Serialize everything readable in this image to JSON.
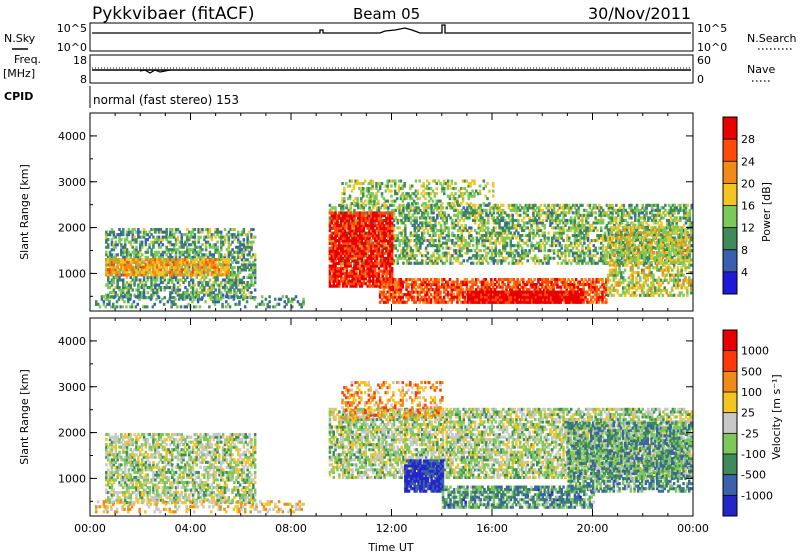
{
  "header": {
    "station": "Pykkvibaer (fitACF)",
    "beam": "Beam 05",
    "date": "30/Nov/2011"
  },
  "status_panels": {
    "nsky_label": "N.Sky",
    "nsky_ticks": [
      "10^5",
      "10^0"
    ],
    "nsearch_label": "N.Search",
    "nsearch_ticks": [
      "10^5",
      "10^0"
    ],
    "freq_label": "Freq.",
    "freq_unit": "[MHz]",
    "freq_ticks": [
      "18",
      "8"
    ],
    "nave_label": "Nave",
    "nave_ticks": [
      "60",
      "0"
    ],
    "cpid_label": "CPID",
    "cpid_text": "normal (fast stereo) 153"
  },
  "chart_data": [
    {
      "type": "heatmap",
      "quantity": "Power",
      "ylabel": "Slant Range [km]",
      "ylim": [
        180,
        4500
      ],
      "yticks": [
        1000,
        2000,
        3000,
        4000
      ],
      "xlim": [
        0,
        24
      ],
      "colorbar_label": "Power [dB]",
      "colorbar_ticks": [
        "4",
        "8",
        "12",
        "16",
        "20",
        "24",
        "28"
      ],
      "colorscale": [
        "#1e18d8",
        "#3a5fb0",
        "#3e8a58",
        "#7cc85a",
        "#f2c522",
        "#f28a18",
        "#ff4a0a",
        "#e80000"
      ],
      "echo_regions": [
        {
          "t0": 0.6,
          "t1": 6.6,
          "r0": 450,
          "r1": 1950,
          "fill": 0.55,
          "level": 0.35
        },
        {
          "t0": 0.6,
          "t1": 5.5,
          "r0": 950,
          "r1": 1300,
          "fill": 0.85,
          "level": 0.62
        },
        {
          "t0": 0.2,
          "t1": 8.5,
          "r0": 250,
          "r1": 520,
          "fill": 0.3,
          "level": 0.3
        },
        {
          "t0": 9.5,
          "t1": 23.9,
          "r0": 1200,
          "r1": 2500,
          "fill": 0.55,
          "level": 0.4
        },
        {
          "t0": 9.5,
          "t1": 12.0,
          "r0": 700,
          "r1": 2300,
          "fill": 0.85,
          "level": 0.9
        },
        {
          "t0": 11.5,
          "t1": 20.5,
          "r0": 350,
          "r1": 900,
          "fill": 0.7,
          "level": 0.82
        },
        {
          "t0": 15.0,
          "t1": 19.5,
          "r0": 350,
          "r1": 600,
          "fill": 0.95,
          "level": 0.97
        },
        {
          "t0": 10.0,
          "t1": 16.0,
          "r0": 2500,
          "r1": 3050,
          "fill": 0.35,
          "level": 0.45
        },
        {
          "t0": 20.5,
          "t1": 23.9,
          "r0": 500,
          "r1": 2000,
          "fill": 0.55,
          "level": 0.5
        }
      ]
    },
    {
      "type": "heatmap",
      "quantity": "Velocity",
      "ylabel": "Slant Range [km]",
      "ylim": [
        180,
        4500
      ],
      "yticks": [
        1000,
        2000,
        3000,
        4000
      ],
      "xlim": [
        0,
        24
      ],
      "xlabel": "Time UT",
      "xtick_labels": [
        "00:00",
        "04:00",
        "08:00",
        "12:00",
        "16:00",
        "20:00",
        "00:00"
      ],
      "colorbar_label": "Velocity [m s⁻¹]",
      "colorbar_ticks": [
        "1000",
        "500",
        "100",
        "25",
        "-25",
        "-100",
        "-500",
        "-1000"
      ],
      "colorscale": [
        "#2626c8",
        "#3a62a8",
        "#3e8a58",
        "#7cc85a",
        "#c8c8c8",
        "#f2c522",
        "#f28a18",
        "#ff3a0a",
        "#e80000"
      ],
      "echo_regions": [
        {
          "t0": 0.6,
          "t1": 6.6,
          "r0": 450,
          "r1": 1950,
          "fill": 0.6,
          "level": 0.45
        },
        {
          "t0": 0.2,
          "t1": 8.5,
          "r0": 250,
          "r1": 520,
          "fill": 0.3,
          "level": 0.6
        },
        {
          "t0": 9.5,
          "t1": 23.9,
          "r0": 1000,
          "r1": 2500,
          "fill": 0.65,
          "level": 0.45
        },
        {
          "t0": 12.5,
          "t1": 14.0,
          "r0": 700,
          "r1": 1400,
          "fill": 0.9,
          "level": 0.05
        },
        {
          "t0": 14.0,
          "t1": 20.0,
          "r0": 350,
          "r1": 800,
          "fill": 0.7,
          "level": 0.28
        },
        {
          "t0": 10.0,
          "t1": 14.0,
          "r0": 2300,
          "r1": 3100,
          "fill": 0.35,
          "level": 0.7
        },
        {
          "t0": 19.0,
          "t1": 23.9,
          "r0": 700,
          "r1": 2200,
          "fill": 0.6,
          "level": 0.3
        }
      ]
    }
  ]
}
